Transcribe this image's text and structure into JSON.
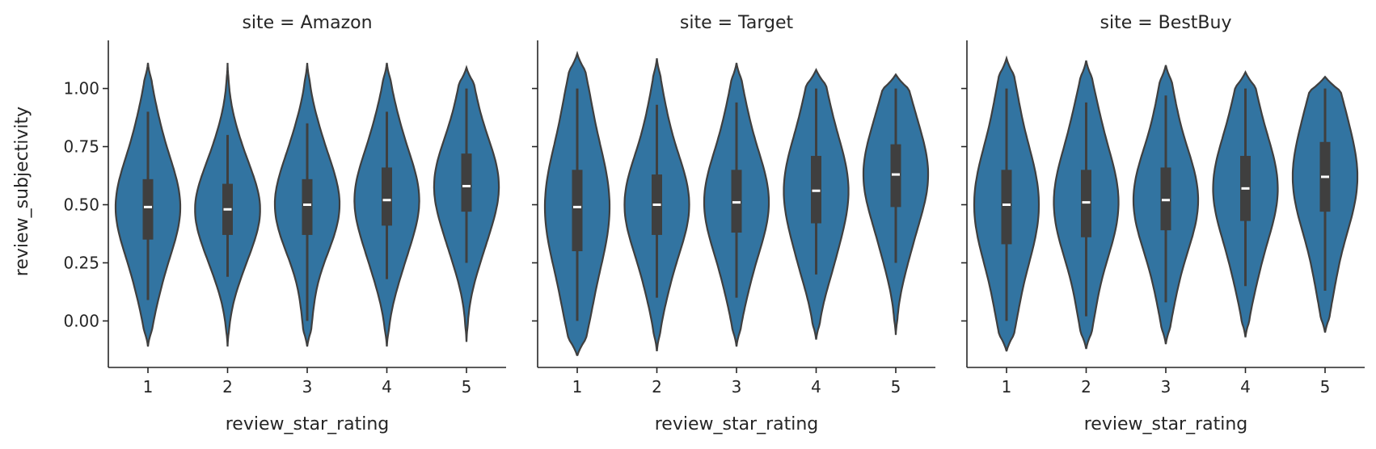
{
  "chart_data": {
    "type": "violin",
    "xlabel": "review_star_rating",
    "ylabel": "review_subjectivity",
    "ylim": [
      -0.2,
      1.2
    ],
    "yticks": [
      "0.00",
      "0.25",
      "0.50",
      "0.75",
      "1.00"
    ],
    "categories": [
      "1",
      "2",
      "3",
      "4",
      "5"
    ],
    "color": "#3274a1",
    "grid": false,
    "panels": [
      {
        "title": "site = Amazon",
        "violins": [
          {
            "category": "1",
            "min": -0.11,
            "max": 1.11,
            "whisker_low": 0.09,
            "whisker_high": 0.9,
            "q1": 0.35,
            "median": 0.49,
            "q3": 0.61
          },
          {
            "category": "2",
            "min": -0.11,
            "max": 1.11,
            "whisker_low": 0.19,
            "whisker_high": 0.8,
            "q1": 0.37,
            "median": 0.48,
            "q3": 0.59
          },
          {
            "category": "3",
            "min": -0.11,
            "max": 1.11,
            "whisker_low": 0.0,
            "whisker_high": 0.85,
            "q1": 0.37,
            "median": 0.5,
            "q3": 0.61
          },
          {
            "category": "4",
            "min": -0.11,
            "max": 1.11,
            "whisker_low": 0.18,
            "whisker_high": 0.9,
            "q1": 0.41,
            "median": 0.52,
            "q3": 0.66
          },
          {
            "category": "5",
            "min": -0.09,
            "max": 1.09,
            "whisker_low": 0.25,
            "whisker_high": 1.0,
            "q1": 0.47,
            "median": 0.58,
            "q3": 0.72
          }
        ]
      },
      {
        "title": "site = Target",
        "violins": [
          {
            "category": "1",
            "min": -0.15,
            "max": 1.15,
            "whisker_low": 0.0,
            "whisker_high": 1.0,
            "q1": 0.3,
            "median": 0.49,
            "q3": 0.65
          },
          {
            "category": "2",
            "min": -0.13,
            "max": 1.13,
            "whisker_low": 0.1,
            "whisker_high": 0.93,
            "q1": 0.37,
            "median": 0.5,
            "q3": 0.63
          },
          {
            "category": "3",
            "min": -0.11,
            "max": 1.11,
            "whisker_low": 0.1,
            "whisker_high": 0.94,
            "q1": 0.38,
            "median": 0.51,
            "q3": 0.65
          },
          {
            "category": "4",
            "min": -0.08,
            "max": 1.08,
            "whisker_low": 0.2,
            "whisker_high": 1.0,
            "q1": 0.42,
            "median": 0.56,
            "q3": 0.71
          },
          {
            "category": "5",
            "min": -0.06,
            "max": 1.06,
            "whisker_low": 0.25,
            "whisker_high": 1.0,
            "q1": 0.49,
            "median": 0.63,
            "q3": 0.76
          }
        ]
      },
      {
        "title": "site = BestBuy",
        "violins": [
          {
            "category": "1",
            "min": -0.13,
            "max": 1.13,
            "whisker_low": 0.0,
            "whisker_high": 1.0,
            "q1": 0.33,
            "median": 0.5,
            "q3": 0.65
          },
          {
            "category": "2",
            "min": -0.12,
            "max": 1.12,
            "whisker_low": 0.02,
            "whisker_high": 0.94,
            "q1": 0.36,
            "median": 0.51,
            "q3": 0.65
          },
          {
            "category": "3",
            "min": -0.1,
            "max": 1.1,
            "whisker_low": 0.08,
            "whisker_high": 0.97,
            "q1": 0.39,
            "median": 0.52,
            "q3": 0.66
          },
          {
            "category": "4",
            "min": -0.07,
            "max": 1.07,
            "whisker_low": 0.15,
            "whisker_high": 1.0,
            "q1": 0.43,
            "median": 0.57,
            "q3": 0.71
          },
          {
            "category": "5",
            "min": -0.05,
            "max": 1.05,
            "whisker_low": 0.13,
            "whisker_high": 1.0,
            "q1": 0.47,
            "median": 0.62,
            "q3": 0.77
          }
        ]
      }
    ]
  }
}
